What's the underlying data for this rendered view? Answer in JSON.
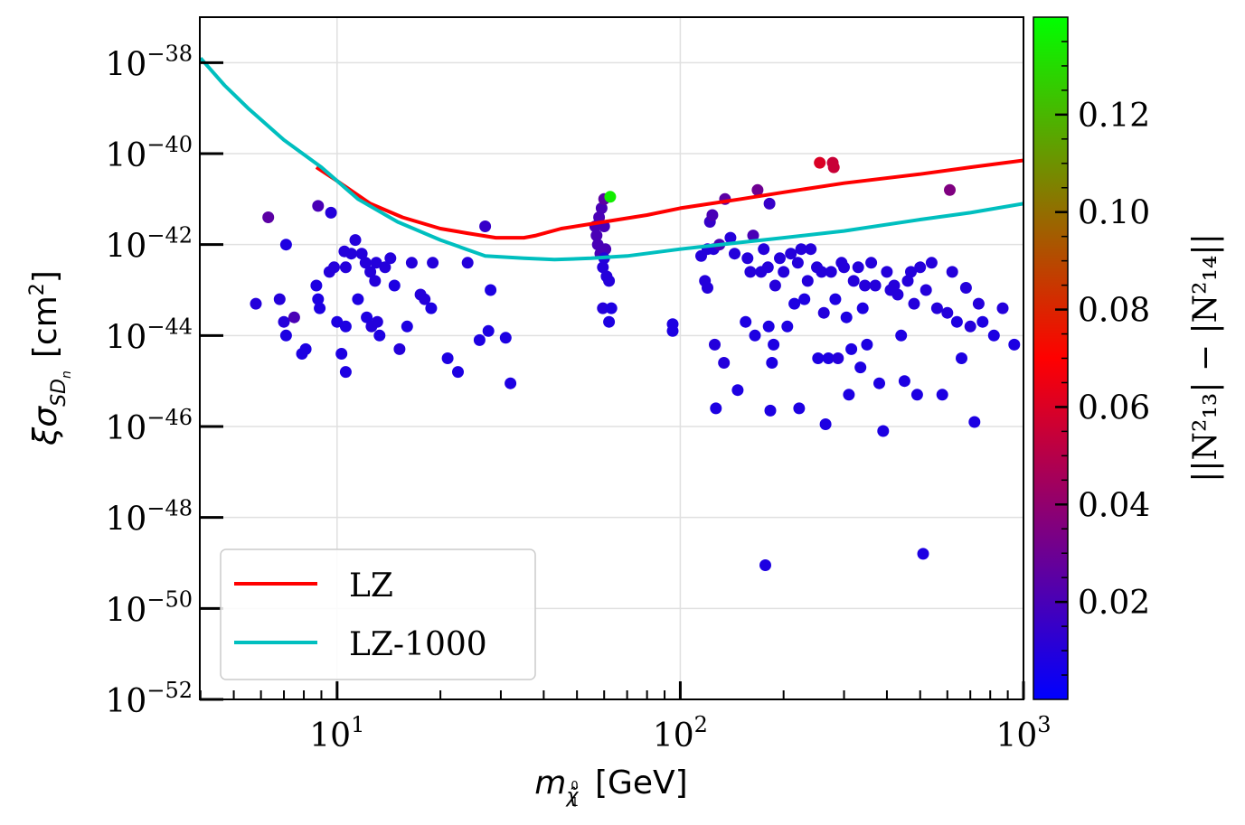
{
  "chart_data": {
    "type": "scatter",
    "xscale": "log",
    "yscale": "log",
    "xlim_exponent": [
      0.6,
      3
    ],
    "ylim_exponent": [
      -52,
      -37
    ],
    "x_ticks": [
      {
        "base": "10",
        "exp": "1",
        "value_exp": 1
      },
      {
        "base": "10",
        "exp": "2",
        "value_exp": 2
      },
      {
        "base": "10",
        "exp": "3",
        "value_exp": 3
      }
    ],
    "y_ticks": [
      {
        "base": "10",
        "exp": "−38",
        "value_exp": -38
      },
      {
        "base": "10",
        "exp": "−40",
        "value_exp": -40
      },
      {
        "base": "10",
        "exp": "−42",
        "value_exp": -42
      },
      {
        "base": "10",
        "exp": "−44",
        "value_exp": -44
      },
      {
        "base": "10",
        "exp": "−46",
        "value_exp": -46
      },
      {
        "base": "10",
        "exp": "−48",
        "value_exp": -48
      },
      {
        "base": "10",
        "exp": "−50",
        "value_exp": -50
      },
      {
        "base": "10",
        "exp": "−52",
        "value_exp": -52
      }
    ],
    "grid": true,
    "legend_position": "lower-left",
    "xlabel": {
      "m": "m",
      "sub": "χ̃",
      "sup": "0",
      "subsub": "1",
      "unit": "[GeV]"
    },
    "ylabel": {
      "xi": "ξσ",
      "sub": "SD",
      "subsub": "n",
      "unit": "[cm",
      "sup": "2",
      "close": "]"
    },
    "colorbar": {
      "label": "||N²₁₃| − |N²₁₄||",
      "range": [
        0.0,
        0.14
      ],
      "ticks": [
        "0.02",
        "0.04",
        "0.06",
        "0.08",
        "0.10",
        "0.12"
      ],
      "tick_values": [
        0.02,
        0.04,
        0.06,
        0.08,
        0.1,
        0.12
      ],
      "colormap": [
        "#0000ff",
        "#7f0080",
        "#ff0000",
        "#808000",
        "#00ff00"
      ]
    },
    "series": [
      {
        "name": "LZ",
        "color": "#ff0000",
        "points": [
          [
            8.7,
            -40.3
          ],
          [
            10,
            -40.6
          ],
          [
            12.5,
            -41.1
          ],
          [
            15.5,
            -41.4
          ],
          [
            20,
            -41.65
          ],
          [
            24,
            -41.75
          ],
          [
            29,
            -41.85
          ],
          [
            35,
            -41.85
          ],
          [
            38,
            -41.8
          ],
          [
            45,
            -41.65
          ],
          [
            60,
            -41.5
          ],
          [
            80,
            -41.35
          ],
          [
            100,
            -41.2
          ],
          [
            150,
            -41.0
          ],
          [
            200,
            -40.85
          ],
          [
            300,
            -40.65
          ],
          [
            500,
            -40.45
          ],
          [
            700,
            -40.3
          ],
          [
            1000,
            -40.15
          ]
        ]
      },
      {
        "name": "LZ-1000",
        "color": "#00bfbf",
        "points": [
          [
            4,
            -37.9
          ],
          [
            4.7,
            -38.5
          ],
          [
            5.5,
            -39.0
          ],
          [
            7,
            -39.7
          ],
          [
            9,
            -40.3
          ],
          [
            11.5,
            -41.0
          ],
          [
            15,
            -41.5
          ],
          [
            20,
            -41.9
          ],
          [
            27,
            -42.25
          ],
          [
            35,
            -42.3
          ],
          [
            43,
            -42.33
          ],
          [
            55,
            -42.3
          ],
          [
            70,
            -42.25
          ],
          [
            100,
            -42.1
          ],
          [
            150,
            -41.95
          ],
          [
            200,
            -41.85
          ],
          [
            300,
            -41.7
          ],
          [
            500,
            -41.45
          ],
          [
            700,
            -41.3
          ],
          [
            1000,
            -41.1
          ]
        ]
      }
    ],
    "scatter_points": [
      [
        5.8,
        -43.3,
        0.01
      ],
      [
        6.3,
        -41.4,
        0.025
      ],
      [
        6.8,
        -43.2,
        0.01
      ],
      [
        7.0,
        -43.7,
        0.01
      ],
      [
        7.1,
        -42.0,
        0.008
      ],
      [
        7.1,
        -44.0,
        0.008
      ],
      [
        7.5,
        -43.6,
        0.02
      ],
      [
        7.9,
        -44.4,
        0.008
      ],
      [
        8.1,
        -44.3,
        0.008
      ],
      [
        8.7,
        -42.9,
        0.008
      ],
      [
        8.8,
        -43.2,
        0.008
      ],
      [
        8.9,
        -43.4,
        0.008
      ],
      [
        8.8,
        -41.15,
        0.02
      ],
      [
        9.6,
        -41.3,
        0.01
      ],
      [
        9.5,
        -42.6,
        0.01
      ],
      [
        9.8,
        -42.5,
        0.01
      ],
      [
        10.0,
        -43.7,
        0.008
      ],
      [
        10.3,
        -44.4,
        0.008
      ],
      [
        10.5,
        -42.15,
        0.01
      ],
      [
        10.6,
        -42.5,
        0.01
      ],
      [
        10.6,
        -43.8,
        0.008
      ],
      [
        10.6,
        -44.8,
        0.008
      ],
      [
        11.0,
        -42.2,
        0.01
      ],
      [
        11.3,
        -41.9,
        0.01
      ],
      [
        11.5,
        -43.2,
        0.008
      ],
      [
        11.8,
        -42.2,
        0.01
      ],
      [
        12.1,
        -42.4,
        0.01
      ],
      [
        12.2,
        -43.6,
        0.008
      ],
      [
        12.5,
        -42.6,
        0.01
      ],
      [
        12.6,
        -43.8,
        0.01
      ],
      [
        12.9,
        -42.8,
        0.01
      ],
      [
        13.0,
        -42.4,
        0.01
      ],
      [
        13.1,
        -43.7,
        0.01
      ],
      [
        13.3,
        -44.0,
        0.008
      ],
      [
        13.8,
        -42.5,
        0.01
      ],
      [
        14.3,
        -42.3,
        0.01
      ],
      [
        14.7,
        -42.9,
        0.008
      ],
      [
        15.2,
        -44.3,
        0.01
      ],
      [
        16.0,
        -43.8,
        0.008
      ],
      [
        16.5,
        -42.4,
        0.01
      ],
      [
        17.5,
        -43.1,
        0.01
      ],
      [
        18.0,
        -43.2,
        0.01
      ],
      [
        18.8,
        -43.4,
        0.008
      ],
      [
        19.0,
        -42.4,
        0.01
      ],
      [
        21.0,
        -44.5,
        0.008
      ],
      [
        22.5,
        -44.8,
        0.008
      ],
      [
        24.0,
        -42.4,
        0.01
      ],
      [
        26.0,
        -44.1,
        0.008
      ],
      [
        27.0,
        -41.6,
        0.015
      ],
      [
        27.6,
        -43.9,
        0.008
      ],
      [
        28.0,
        -43.0,
        0.008
      ],
      [
        31.0,
        -44.05,
        0.008
      ],
      [
        32.0,
        -45.05,
        0.008
      ],
      [
        56.5,
        -41.6,
        0.02
      ],
      [
        57.0,
        -41.8,
        0.02
      ],
      [
        57.5,
        -42.0,
        0.02
      ],
      [
        58,
        -41.4,
        0.02
      ],
      [
        58.5,
        -42.2,
        0.02
      ],
      [
        59,
        -41.2,
        0.02
      ],
      [
        59.5,
        -42.5,
        0.01
      ],
      [
        60,
        -41.0,
        0.025
      ],
      [
        60,
        -41.6,
        0.02
      ],
      [
        60.5,
        -42.1,
        0.02
      ],
      [
        60,
        -42.3,
        0.01
      ],
      [
        61,
        -42.7,
        0.01
      ],
      [
        62,
        -42.8,
        0.01
      ],
      [
        59.5,
        -43.4,
        0.01
      ],
      [
        62,
        -43.7,
        0.008
      ],
      [
        63,
        -43.4,
        0.008
      ],
      [
        62.5,
        -40.95,
        0.135
      ],
      [
        95,
        -43.75,
        0.008
      ],
      [
        95,
        -43.9,
        0.008
      ],
      [
        115,
        -42.25,
        0.01
      ],
      [
        118,
        -42.8,
        0.01
      ],
      [
        120,
        -42.1,
        0.01
      ],
      [
        120,
        -42.95,
        0.01
      ],
      [
        122,
        -41.5,
        0.015
      ],
      [
        124,
        -41.35,
        0.02
      ],
      [
        125,
        -42.1,
        0.01
      ],
      [
        126,
        -44.2,
        0.01
      ],
      [
        127,
        -45.6,
        0.008
      ],
      [
        130,
        -42.0,
        0.02
      ],
      [
        134,
        -44.6,
        0.01
      ],
      [
        135,
        -41.0,
        0.025
      ],
      [
        140,
        -41.85,
        0.01
      ],
      [
        144,
        -42.2,
        0.01
      ],
      [
        147,
        -45.2,
        0.008
      ],
      [
        155,
        -43.7,
        0.008
      ],
      [
        157,
        -42.3,
        0.01
      ],
      [
        160,
        -42.6,
        0.01
      ],
      [
        163,
        -41.8,
        0.02
      ],
      [
        165,
        -44.0,
        0.008
      ],
      [
        168,
        -40.8,
        0.03
      ],
      [
        172,
        -42.6,
        0.01
      ],
      [
        175,
        -42.1,
        0.01
      ],
      [
        177,
        -49.05,
        0.008
      ],
      [
        180,
        -42.5,
        0.01
      ],
      [
        181,
        -43.8,
        0.008
      ],
      [
        182,
        -41.1,
        0.015
      ],
      [
        183,
        -45.65,
        0.008
      ],
      [
        185,
        -44.6,
        0.008
      ],
      [
        187,
        -44.2,
        0.008
      ],
      [
        189,
        -42.9,
        0.01
      ],
      [
        195,
        -42.3,
        0.01
      ],
      [
        200,
        -42.6,
        0.01
      ],
      [
        205,
        -43.8,
        0.008
      ],
      [
        210,
        -42.2,
        0.01
      ],
      [
        215,
        -43.3,
        0.008
      ],
      [
        220,
        -42.4,
        0.01
      ],
      [
        222,
        -45.6,
        0.008
      ],
      [
        225,
        -42.1,
        0.01
      ],
      [
        230,
        -43.2,
        0.008
      ],
      [
        235,
        -42.8,
        0.01
      ],
      [
        240,
        -42.1,
        0.01
      ],
      [
        250,
        -42.5,
        0.01
      ],
      [
        252,
        -44.5,
        0.008
      ],
      [
        255,
        -40.2,
        0.06
      ],
      [
        258,
        -42.6,
        0.01
      ],
      [
        262,
        -43.5,
        0.01
      ],
      [
        265,
        -45.95,
        0.008
      ],
      [
        270,
        -44.5,
        0.008
      ],
      [
        275,
        -42.6,
        0.01
      ],
      [
        278,
        -40.2,
        0.055
      ],
      [
        280,
        -40.3,
        0.055
      ],
      [
        283,
        -43.2,
        0.008
      ],
      [
        288,
        -44.5,
        0.01
      ],
      [
        295,
        -42.4,
        0.01
      ],
      [
        300,
        -42.5,
        0.01
      ],
      [
        305,
        -43.6,
        0.008
      ],
      [
        310,
        -45.3,
        0.008
      ],
      [
        315,
        -44.3,
        0.008
      ],
      [
        320,
        -42.8,
        0.01
      ],
      [
        330,
        -42.5,
        0.01
      ],
      [
        335,
        -44.7,
        0.008
      ],
      [
        340,
        -43.4,
        0.008
      ],
      [
        345,
        -42.9,
        0.01
      ],
      [
        350,
        -44.2,
        0.008
      ],
      [
        360,
        -42.4,
        0.01
      ],
      [
        370,
        -42.9,
        0.01
      ],
      [
        380,
        -45.05,
        0.008
      ],
      [
        390,
        -46.1,
        0.008
      ],
      [
        400,
        -42.6,
        0.01
      ],
      [
        410,
        -43.0,
        0.01
      ],
      [
        420,
        -42.9,
        0.01
      ],
      [
        430,
        -43.1,
        0.01
      ],
      [
        440,
        -44.0,
        0.008
      ],
      [
        450,
        -45.0,
        0.008
      ],
      [
        460,
        -42.8,
        0.01
      ],
      [
        470,
        -42.6,
        0.01
      ],
      [
        480,
        -43.3,
        0.01
      ],
      [
        490,
        -45.3,
        0.008
      ],
      [
        500,
        -42.5,
        0.01
      ],
      [
        510,
        -48.8,
        0.008
      ],
      [
        520,
        -43.0,
        0.01
      ],
      [
        540,
        -42.4,
        0.01
      ],
      [
        560,
        -43.4,
        0.01
      ],
      [
        580,
        -45.3,
        0.008
      ],
      [
        600,
        -43.5,
        0.01
      ],
      [
        610,
        -40.8,
        0.035
      ],
      [
        620,
        -42.6,
        0.01
      ],
      [
        640,
        -43.7,
        0.008
      ],
      [
        660,
        -44.5,
        0.008
      ],
      [
        680,
        -42.95,
        0.01
      ],
      [
        700,
        -43.8,
        0.01
      ],
      [
        720,
        -45.9,
        0.008
      ],
      [
        740,
        -43.3,
        0.01
      ],
      [
        760,
        -43.7,
        0.008
      ],
      [
        820,
        -44.0,
        0.008
      ],
      [
        870,
        -43.4,
        0.01
      ],
      [
        940,
        -44.2,
        0.008
      ]
    ]
  }
}
